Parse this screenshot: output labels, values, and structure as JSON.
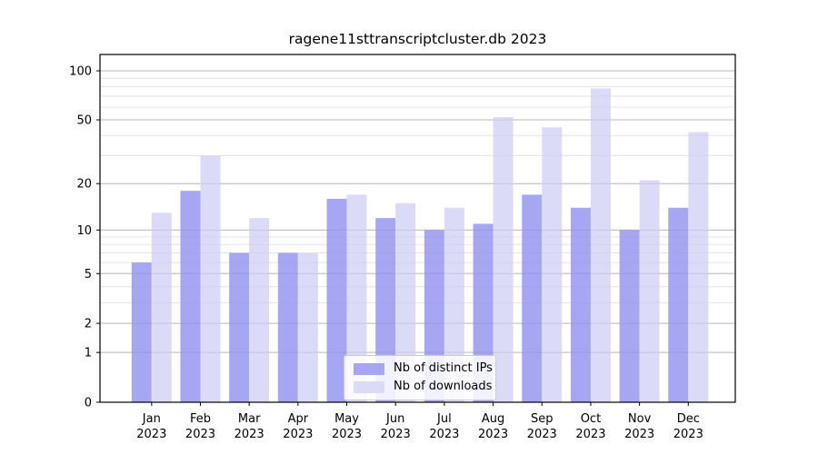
{
  "chart_data": {
    "type": "bar",
    "title": "ragene11sttranscriptcluster.db 2023",
    "categories": [
      "Jan",
      "Feb",
      "Mar",
      "Apr",
      "May",
      "Jun",
      "Jul",
      "Aug",
      "Sep",
      "Oct",
      "Nov",
      "Dec"
    ],
    "x_tick_second_line": "2023",
    "series": [
      {
        "name": "Nb of distinct IPs",
        "color": "#a6a6f3",
        "values": [
          6,
          18,
          7,
          7,
          16,
          12,
          10,
          11,
          17,
          14,
          10,
          14
        ]
      },
      {
        "name": "Nb of downloads",
        "color": "#dbdbf8",
        "values": [
          13,
          30,
          12,
          7,
          17,
          15,
          14,
          52,
          45,
          78,
          21,
          42
        ]
      }
    ],
    "yscale": "log(1+x)",
    "ylim": [
      0,
      126
    ],
    "yticks": [
      0,
      1,
      2,
      5,
      10,
      20,
      50,
      100
    ],
    "yticks_minor": [
      3,
      4,
      6,
      7,
      8,
      9,
      30,
      40,
      60,
      70,
      80,
      90
    ],
    "grid": true,
    "legend_position": "lower center"
  },
  "colors": {
    "grid_major": "#cccccc",
    "grid_minor": "#eeeeee",
    "axis": "#000000",
    "background": "#ffffff"
  }
}
